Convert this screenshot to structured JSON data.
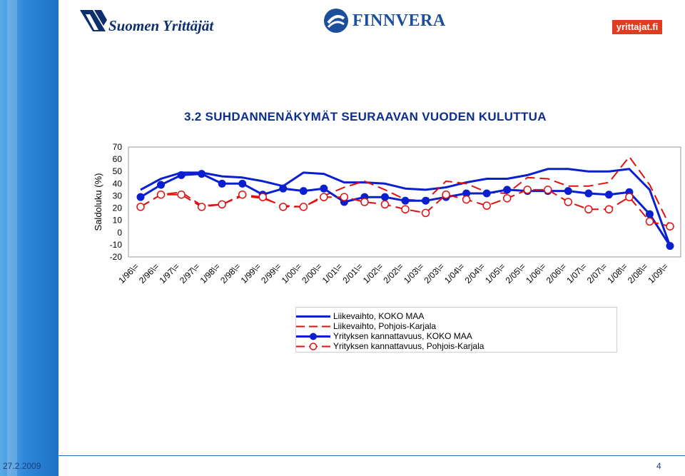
{
  "header": {
    "logo_left_text": "Suomen Yrittäjät",
    "logo_center_text": "FINNVERA",
    "logo_right_text": "yrittajat.fi"
  },
  "footer": {
    "date": "27.2.2009",
    "page": "4"
  },
  "chart_data": {
    "type": "line",
    "title": "3.2 SUHDANNENÄKYMÄT SEURAAVAN VUODEN KULUTTUA",
    "ylabel": "Saldoluku (%)",
    "xlabel": "",
    "ylim": [
      -20,
      70
    ],
    "yticks": [
      70,
      60,
      50,
      40,
      30,
      20,
      10,
      0,
      -10,
      -20
    ],
    "grid": false,
    "legend": "bottom",
    "categories": [
      "1/96\\=",
      "2/96\\=",
      "1/97\\=",
      "2/97\\=",
      "1/98\\=",
      "2/98\\=",
      "1/99\\=",
      "2/99\\=",
      "1/00\\=",
      "2/00\\=",
      "1/01\\=",
      "2/01\\=",
      "1/02\\=",
      "2/02\\=",
      "1/03\\=",
      "2/03\\=",
      "1/04\\=",
      "2/04\\=",
      "1/05\\=",
      "2/05\\=",
      "1/06\\=",
      "2/06\\=",
      "1/07\\=",
      "2/07\\=",
      "1/08\\=",
      "2/08\\=",
      "1/09\\="
    ],
    "series": [
      {
        "name": "Liikevaihto, KOKO MAA",
        "style": "solid",
        "marker": "none",
        "color": "#0a1fd0",
        "values": [
          35,
          44,
          49,
          49,
          46,
          45,
          42,
          38,
          49,
          48,
          41,
          41,
          40,
          36,
          35,
          37,
          41,
          44,
          44,
          47,
          52,
          52,
          50,
          50,
          52,
          35,
          -11
        ]
      },
      {
        "name": "Liikevaihto, Pohjois-Karjala",
        "style": "dashed",
        "marker": "none",
        "color": "#e01010",
        "values": [
          21,
          31,
          33,
          22,
          23,
          30,
          28,
          22,
          21,
          30,
          37,
          42,
          35,
          27,
          26,
          42,
          40,
          33,
          32,
          45,
          44,
          38,
          38,
          41,
          62,
          39,
          5
        ]
      },
      {
        "name": "Yrityksen kannattavuus, KOKO MAA",
        "style": "solid",
        "marker": "filled-circle",
        "color": "#0a1fd0",
        "values": [
          29,
          39,
          47,
          48,
          40,
          40,
          31,
          36,
          34,
          36,
          25,
          29,
          29,
          26,
          26,
          29,
          32,
          32,
          35,
          34,
          34,
          34,
          32,
          31,
          33,
          15,
          -11
        ]
      },
      {
        "name": "Yrityksen kannattavuus, Pohjois-Karjala",
        "style": "dashed",
        "marker": "open-circle",
        "color": "#e01010",
        "values": [
          21,
          31,
          31,
          21,
          23,
          31,
          29,
          21,
          21,
          29,
          29,
          25,
          23,
          19,
          16,
          31,
          27,
          22,
          28,
          35,
          35,
          25,
          19,
          19,
          29,
          9,
          5
        ]
      }
    ]
  }
}
